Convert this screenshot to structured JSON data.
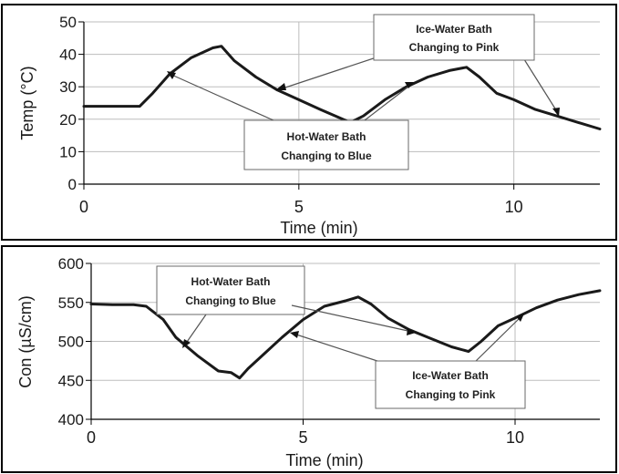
{
  "chart_data": [
    {
      "type": "line",
      "xlabel": "Time (min)",
      "ylabel": "Temp (°C)",
      "xlim": [
        0,
        12
      ],
      "ylim": [
        0,
        50
      ],
      "xticks": [
        "0",
        "5",
        "10"
      ],
      "yticks": [
        "0",
        "10",
        "20",
        "30",
        "40",
        "50"
      ],
      "grid": true,
      "series": [
        {
          "x": [
            0,
            0.5,
            1,
            1.3,
            1.6,
            2.0,
            2.5,
            3.0,
            3.2,
            3.5,
            4.0,
            4.5,
            5.0,
            5.5,
            6.2,
            6.5,
            7.0,
            7.5,
            8.0,
            8.5,
            8.9,
            9.2,
            9.6,
            10.0,
            10.5,
            11.0,
            11.5,
            12.0
          ],
          "y": [
            24,
            24,
            24,
            24,
            28,
            34,
            39,
            42,
            42.5,
            38,
            33,
            29,
            26,
            23,
            19,
            21,
            26,
            30,
            33,
            35,
            36,
            33,
            28,
            26,
            23,
            21,
            19,
            17
          ]
        }
      ],
      "annotations": [
        {
          "text": [
            "Ice-Water Bath",
            "Changing to Pink"
          ],
          "points": [
            [
              4.6,
              29.5
            ],
            [
              11.0,
              21
            ]
          ]
        },
        {
          "text": [
            "Hot-Water Bath",
            "Changing to Blue"
          ],
          "points": [
            [
              2.0,
              34
            ],
            [
              7.5,
              30
            ]
          ]
        }
      ]
    },
    {
      "type": "line",
      "xlabel": "Time (min)",
      "ylabel": "Con (µS/cm)",
      "xlim": [
        0,
        12
      ],
      "ylim": [
        400,
        600
      ],
      "xticks": [
        "0",
        "5",
        "10"
      ],
      "yticks": [
        "400",
        "450",
        "500",
        "550",
        "600"
      ],
      "grid": true,
      "series": [
        {
          "x": [
            0,
            0.5,
            1.0,
            1.3,
            1.7,
            2.0,
            2.5,
            3.0,
            3.3,
            3.5,
            3.7,
            4.0,
            4.5,
            5.0,
            5.5,
            6.0,
            6.3,
            6.6,
            7.0,
            7.5,
            8.0,
            8.5,
            8.9,
            9.2,
            9.6,
            10.0,
            10.5,
            11.0,
            11.5,
            12.0
          ],
          "y": [
            548,
            547,
            547,
            545,
            528,
            505,
            482,
            462,
            460,
            453,
            465,
            480,
            505,
            528,
            545,
            552,
            557,
            548,
            530,
            515,
            504,
            493,
            487,
            500,
            520,
            530,
            543,
            553,
            560,
            565
          ]
        }
      ],
      "annotations": [
        {
          "text": [
            "Hot-Water Bath",
            "Changing to Blue"
          ],
          "points": [
            [
              2.3,
              496
            ]
          ]
        },
        {
          "text": [
            "Ice-Water Bath",
            "Changing to Pink"
          ],
          "points": [
            [
              4.7,
              510
            ],
            [
              7.6,
              513
            ],
            [
              10.3,
              532
            ]
          ]
        }
      ]
    }
  ]
}
